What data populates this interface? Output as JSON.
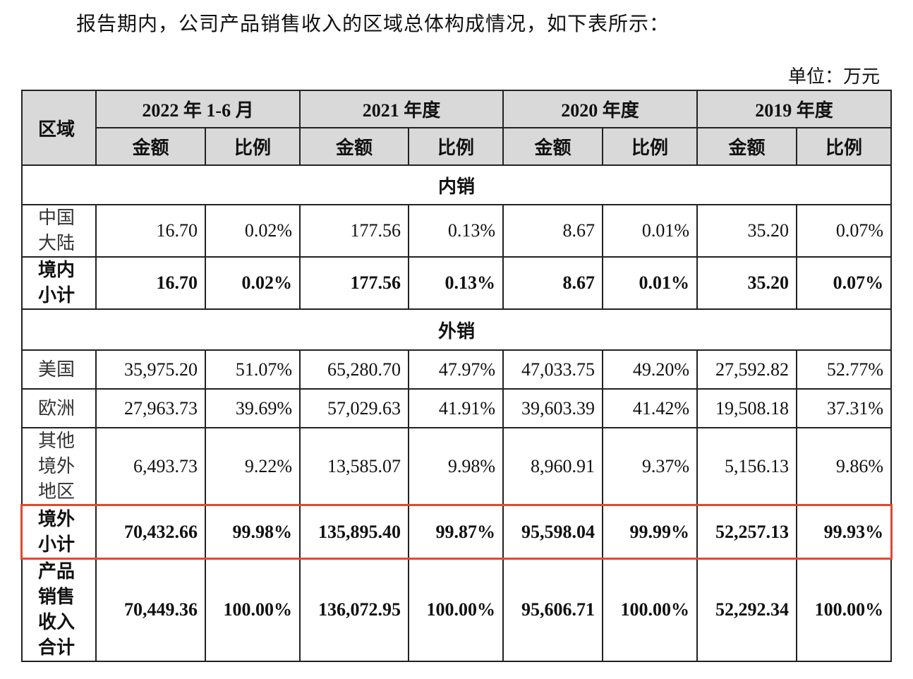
{
  "intro": "报告期内，公司产品销售收入的区域总体构成情况，如下表所示：",
  "unit": "单位：万元",
  "table": {
    "region_header": "区域",
    "periods": [
      {
        "label": "2022 年 1-6 月",
        "columns": [
          "金额",
          "比例"
        ]
      },
      {
        "label": "2021 年度",
        "columns": [
          "金额",
          "比例"
        ]
      },
      {
        "label": "2020 年度",
        "columns": [
          "金额",
          "比例"
        ]
      },
      {
        "label": "2019 年度",
        "columns": [
          "金额",
          "比例"
        ]
      }
    ],
    "rows": [
      {
        "section": "内销"
      },
      {
        "region": "中国大陆",
        "bold": false,
        "highlight": false,
        "cells": [
          "16.70",
          "0.02%",
          "177.56",
          "0.13%",
          "8.67",
          "0.01%",
          "35.20",
          "0.07%"
        ]
      },
      {
        "region": "境内小计",
        "bold": true,
        "highlight": false,
        "cells": [
          "16.70",
          "0.02%",
          "177.56",
          "0.13%",
          "8.67",
          "0.01%",
          "35.20",
          "0.07%"
        ]
      },
      {
        "section": "外销"
      },
      {
        "region": "美国",
        "bold": false,
        "highlight": false,
        "cells": [
          "35,975.20",
          "51.07%",
          "65,280.70",
          "47.97%",
          "47,033.75",
          "49.20%",
          "27,592.82",
          "52.77%"
        ]
      },
      {
        "region": "欧洲",
        "bold": false,
        "highlight": false,
        "cells": [
          "27,963.73",
          "39.69%",
          "57,029.63",
          "41.91%",
          "39,603.39",
          "41.42%",
          "19,508.18",
          "37.31%"
        ]
      },
      {
        "region": "其他境外地区",
        "bold": false,
        "highlight": false,
        "cells": [
          "6,493.73",
          "9.22%",
          "13,585.07",
          "9.98%",
          "8,960.91",
          "9.37%",
          "5,156.13",
          "9.86%"
        ]
      },
      {
        "region": "境外小计",
        "bold": true,
        "highlight": true,
        "cells": [
          "70,432.66",
          "99.98%",
          "135,895.40",
          "99.87%",
          "95,598.04",
          "99.99%",
          "52,257.13",
          "99.93%"
        ]
      },
      {
        "region": "产品销售收入合计",
        "bold": true,
        "highlight": false,
        "cells": [
          "70,449.36",
          "100.00%",
          "136,072.95",
          "100.00%",
          "95,606.71",
          "100.00%",
          "52,292.34",
          "100.00%"
        ]
      }
    ]
  }
}
